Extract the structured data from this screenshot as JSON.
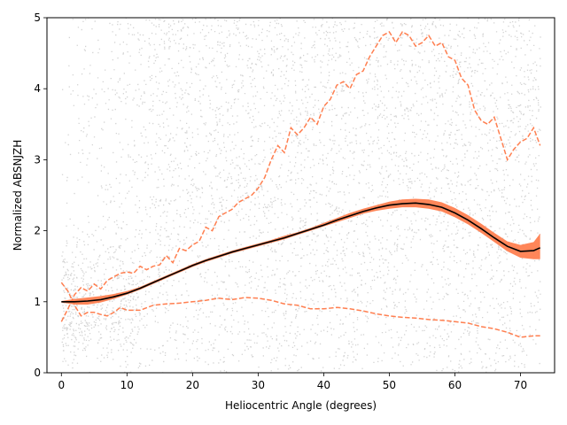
{
  "chart_data": {
    "type": "scatter",
    "title": "",
    "xlabel": "Heliocentric Angle (degrees)",
    "ylabel": "Normalized ABSNJZH",
    "xlim": [
      -2.2,
      75.2
    ],
    "ylim": [
      0,
      5
    ],
    "xticks": [
      0,
      10,
      20,
      30,
      40,
      50,
      60,
      70
    ],
    "yticks": [
      0,
      1,
      2,
      3,
      4,
      5
    ],
    "grid": false,
    "legend": "none",
    "colors": {
      "scatter": "#d3d3d3",
      "fit_line": "#000000",
      "fit_line_core": "#8b1a1a",
      "confidence_band": "#ff7f50",
      "percentile_lines": "#ff7f50"
    },
    "scatter_note": "dense cloud of individual measurements, roughly uniform from 0 to 5 beyond 15 degrees, sparser and concentrated near 1 at small angles",
    "series": [
      {
        "name": "mean fit",
        "style": "solid",
        "x": [
          0,
          2,
          4,
          6,
          8,
          10,
          12,
          14,
          16,
          18,
          20,
          22,
          24,
          26,
          28,
          30,
          32,
          34,
          36,
          38,
          40,
          42,
          44,
          46,
          48,
          50,
          52,
          54,
          56,
          58,
          60,
          62,
          64,
          66,
          68,
          70,
          72,
          73
        ],
        "values": [
          1.0,
          1.0,
          1.01,
          1.03,
          1.07,
          1.12,
          1.19,
          1.27,
          1.35,
          1.43,
          1.51,
          1.58,
          1.64,
          1.7,
          1.75,
          1.8,
          1.85,
          1.9,
          1.96,
          2.02,
          2.08,
          2.15,
          2.21,
          2.27,
          2.32,
          2.36,
          2.38,
          2.39,
          2.37,
          2.33,
          2.25,
          2.15,
          2.03,
          1.9,
          1.78,
          1.71,
          1.72,
          1.76
        ]
      },
      {
        "name": "confidence band",
        "style": "band",
        "x": [
          0,
          2,
          4,
          6,
          8,
          10,
          12,
          14,
          16,
          18,
          20,
          22,
          24,
          26,
          28,
          30,
          32,
          34,
          36,
          38,
          40,
          42,
          44,
          46,
          48,
          50,
          52,
          54,
          56,
          58,
          60,
          62,
          64,
          66,
          68,
          70,
          72,
          73
        ],
        "lower": [
          0.99,
          0.96,
          0.96,
          0.99,
          1.04,
          1.1,
          1.17,
          1.25,
          1.33,
          1.41,
          1.49,
          1.56,
          1.62,
          1.68,
          1.73,
          1.78,
          1.83,
          1.88,
          1.94,
          2.0,
          2.06,
          2.12,
          2.18,
          2.24,
          2.28,
          2.31,
          2.33,
          2.33,
          2.31,
          2.27,
          2.19,
          2.09,
          1.97,
          1.84,
          1.71,
          1.62,
          1.6,
          1.6
        ],
        "upper": [
          1.01,
          1.04,
          1.06,
          1.08,
          1.11,
          1.15,
          1.21,
          1.29,
          1.37,
          1.45,
          1.53,
          1.6,
          1.66,
          1.72,
          1.77,
          1.82,
          1.87,
          1.93,
          1.98,
          2.04,
          2.11,
          2.18,
          2.25,
          2.31,
          2.36,
          2.41,
          2.44,
          2.45,
          2.44,
          2.4,
          2.32,
          2.22,
          2.1,
          1.97,
          1.85,
          1.8,
          1.84,
          1.96
        ]
      },
      {
        "name": "upper percentile",
        "style": "dashed",
        "x": [
          0,
          1,
          2,
          3,
          4,
          5,
          6,
          7,
          8,
          9,
          10,
          11,
          12,
          13,
          14,
          15,
          16,
          17,
          18,
          19,
          20,
          21,
          22,
          23,
          24,
          25,
          26,
          27,
          28,
          29,
          30,
          31,
          32,
          33,
          34,
          35,
          36,
          37,
          38,
          39,
          40,
          41,
          42,
          43,
          44,
          45,
          46,
          47,
          48,
          49,
          50,
          51,
          52,
          53,
          54,
          55,
          56,
          57,
          58,
          59,
          60,
          61,
          62,
          63,
          64,
          65,
          66,
          67,
          68,
          69,
          70,
          71,
          72,
          73
        ],
        "values": [
          0.72,
          0.9,
          1.1,
          1.2,
          1.15,
          1.25,
          1.18,
          1.3,
          1.35,
          1.4,
          1.42,
          1.4,
          1.5,
          1.45,
          1.5,
          1.52,
          1.65,
          1.55,
          1.75,
          1.72,
          1.8,
          1.85,
          2.05,
          2.0,
          2.2,
          2.25,
          2.3,
          2.4,
          2.45,
          2.5,
          2.6,
          2.75,
          3.0,
          3.2,
          3.1,
          3.45,
          3.35,
          3.45,
          3.6,
          3.5,
          3.75,
          3.85,
          4.05,
          4.1,
          4.0,
          4.2,
          4.25,
          4.45,
          4.6,
          4.75,
          4.8,
          4.65,
          4.8,
          4.75,
          4.6,
          4.65,
          4.75,
          4.6,
          4.65,
          4.45,
          4.4,
          4.15,
          4.05,
          3.7,
          3.55,
          3.5,
          3.6,
          3.3,
          3.0,
          3.15,
          3.25,
          3.3,
          3.45,
          3.2
        ]
      },
      {
        "name": "lower percentile",
        "style": "dashed",
        "x": [
          0,
          1,
          2,
          3,
          4,
          5,
          6,
          7,
          8,
          9,
          10,
          12,
          14,
          16,
          18,
          20,
          22,
          24,
          26,
          28,
          30,
          32,
          34,
          36,
          38,
          40,
          42,
          44,
          46,
          48,
          50,
          52,
          54,
          56,
          58,
          60,
          62,
          64,
          66,
          68,
          70,
          72,
          73
        ],
        "values": [
          1.27,
          1.15,
          0.95,
          0.8,
          0.85,
          0.85,
          0.82,
          0.8,
          0.85,
          0.92,
          0.88,
          0.88,
          0.95,
          0.97,
          0.98,
          1.0,
          1.02,
          1.05,
          1.03,
          1.06,
          1.05,
          1.02,
          0.97,
          0.95,
          0.9,
          0.9,
          0.92,
          0.9,
          0.87,
          0.83,
          0.8,
          0.78,
          0.77,
          0.75,
          0.74,
          0.72,
          0.7,
          0.65,
          0.62,
          0.57,
          0.5,
          0.52,
          0.52
        ]
      }
    ]
  }
}
